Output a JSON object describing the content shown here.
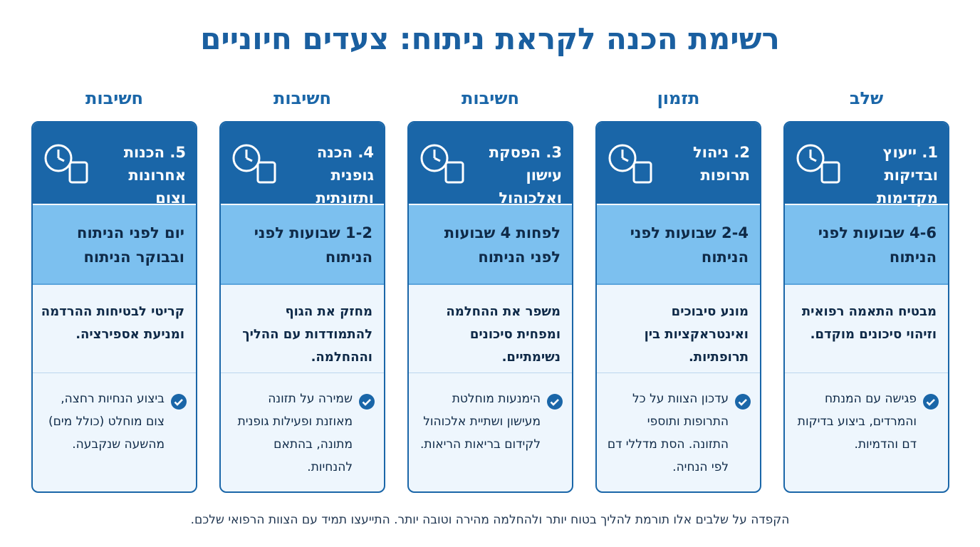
{
  "title": "רשימת הכנה לקראת ניתוח: צעדים חיוניים",
  "column_headers": [
    "שלב",
    "תזמון",
    "חשיבות",
    "חשיבות",
    "חשיבות"
  ],
  "cards": [
    {
      "title": "1. ייעוץ ובדיקות מקדימות",
      "timing": "4-6 שבועות לפני הניתוח",
      "importance": "מבטיח התאמה רפואית וזיהוי סיכונים מוקדם.",
      "action": "פגישה עם המנתח והמרדים, ביצוע בדיקות דם והדמיות."
    },
    {
      "title": "2. ניהול תרופות",
      "timing": "2-4 שבועות לפני הניתוח",
      "importance": "מונע סיבוכים ואינטראקציות בין תרופתיות.",
      "action": "עדכון הצוות על כל התרופות ותוספי התזונה. הסת מדללי דם לפי הנחיה."
    },
    {
      "title": "3. הפסקת עישון ואלכוהול",
      "timing": "לפחות 4 שבועות לפני הניתוח",
      "importance": "משפר את ההחלמה ומפחית סיכונים נשימתיים.",
      "action": "הימנעות מוחלטת מעישון ושתיית אלכוהול לקידום בריאות הריאות."
    },
    {
      "title": "4. הכנה גופנית ותזונתית",
      "timing": "1-2 שבועות לפני הניתוח",
      "importance": "מחזק את הגוף להתמודדות עם ההליך וההחלמה.",
      "action": "שמירה על תזונה מאוזנת ופעילות גופנית מתונה, בהתאם להנחיות."
    },
    {
      "title": "5. הכנות אחרונות וצום",
      "timing": "יום לפני הניתוח ובבוקר הניתוח",
      "importance": "קריטי לבטיחות ההרדמה ומניעת אספירציה.",
      "action": "ביצוע הנחיות רחצה, צום מוחלט (כולל מים) מהשעה שנקבעה."
    }
  ],
  "footer": "הקפדה על שלבים אלו תורמת להליך בטוח יותר ולהחלמה מהירה וטובה יותר. התייעצו תמיד עם הצוות הרפואי שלכם."
}
